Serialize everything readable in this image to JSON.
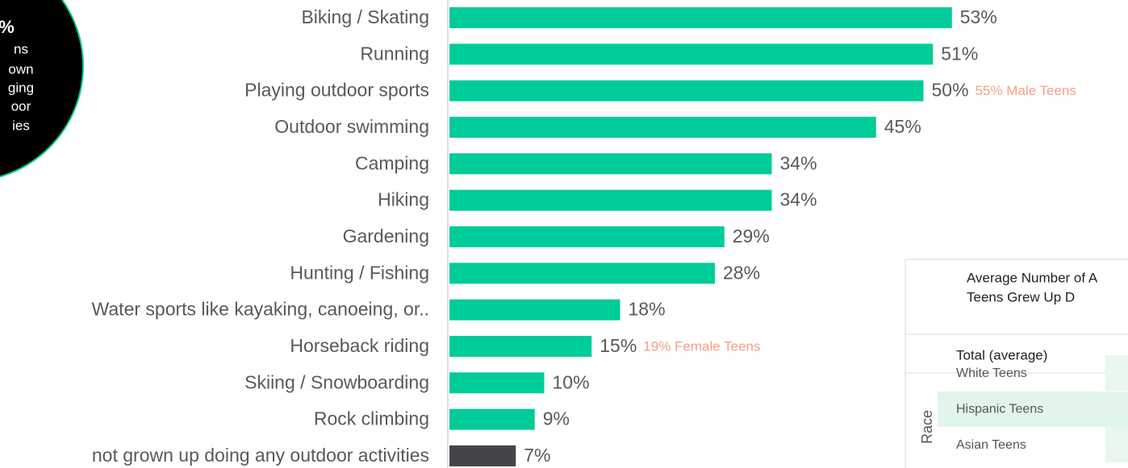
{
  "chart_data": {
    "type": "bar",
    "orientation": "horizontal",
    "categories": [
      "Biking / Skating",
      "Running",
      "Playing outdoor sports",
      "Outdoor swimming",
      "Camping",
      "Hiking",
      "Gardening",
      "Hunting / Fishing",
      "Water sports like kayaking, canoeing, or..",
      "Horseback riding",
      "Skiing / Snowboarding",
      "Rock climbing",
      "not grown up doing any outdoor activities"
    ],
    "values": [
      53,
      51,
      50,
      45,
      34,
      34,
      29,
      28,
      18,
      15,
      10,
      9,
      7
    ],
    "value_labels": [
      "53%",
      "51%",
      "50%",
      "45%",
      "34%",
      "34%",
      "29%",
      "28%",
      "18%",
      "15%",
      "10%",
      "9%",
      "7%"
    ],
    "colors": [
      "#00cc99",
      "#00cc99",
      "#00cc99",
      "#00cc99",
      "#00cc99",
      "#00cc99",
      "#00cc99",
      "#00cc99",
      "#00cc99",
      "#00cc99",
      "#00cc99",
      "#00cc99",
      "#43454b"
    ],
    "xlim": [
      0,
      60
    ],
    "annotations": [
      {
        "category": "Playing outdoor sports",
        "text": "55% Male Teens"
      },
      {
        "category": "Horseback riding",
        "text": "19% Female Teens"
      }
    ]
  },
  "callout": {
    "lines": [
      "%",
      "ns",
      "own",
      "ging",
      "oor",
      "ies"
    ]
  },
  "table": {
    "title_lines": [
      "Average Number of A",
      "Teens Grew Up D"
    ],
    "header": "Total (average)",
    "group": "Race",
    "rows": [
      "White Teens",
      "Hispanic Teens",
      "Asian Teens"
    ]
  }
}
